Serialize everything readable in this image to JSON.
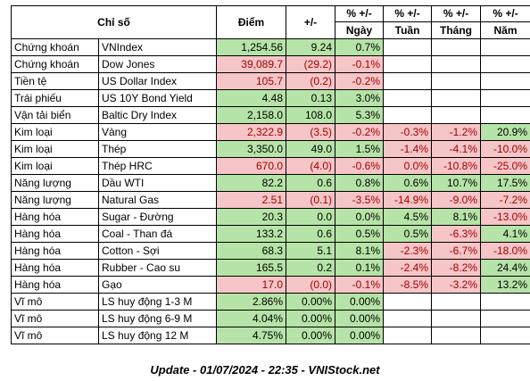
{
  "headers": {
    "category": "Chỉ số",
    "points": "Điểm",
    "change": "+/-",
    "pct_day_top": "% +/-",
    "pct_day_bottom": "Ngày",
    "pct_week_top": "% +/-",
    "pct_week_bottom": "Tuần",
    "pct_month_top": "% +/-",
    "pct_month_bottom": "Tháng",
    "pct_year_top": "% +/-",
    "pct_year_bottom": "Năm"
  },
  "rows": [
    {
      "category": "Chứng khoán",
      "name": "VNIndex",
      "points": "1,254.56",
      "change": "9.24",
      "day": "0.7%",
      "week": "",
      "month": "",
      "year": ""
    },
    {
      "category": "Chứng khoán",
      "name": "Dow Jones",
      "points": "39,089.7",
      "change": "(29.2)",
      "day": "-0.1%",
      "week": "",
      "month": "",
      "year": ""
    },
    {
      "category": "Tiền tệ",
      "name": "US Dollar Index",
      "points": "105.7",
      "change": "(0.2)",
      "day": "-0.2%",
      "week": "",
      "month": "",
      "year": ""
    },
    {
      "category": "Trái phiếu",
      "name": "US 10Y Bond Yield",
      "points": "4.48",
      "change": "0.13",
      "day": "3.0%",
      "week": "",
      "month": "",
      "year": ""
    },
    {
      "category": "Vận tải biển",
      "name": "Baltic Dry Index",
      "points": "2,158.0",
      "change": "108.0",
      "day": "5.3%",
      "week": "",
      "month": "",
      "year": ""
    },
    {
      "category": "Kim loại",
      "name": "Vàng",
      "points": "2,322.9",
      "change": "(3.5)",
      "day": "-0.2%",
      "week": "-0.3%",
      "month": "-1.2%",
      "year": "20.9%"
    },
    {
      "category": "Kim loại",
      "name": "Thép",
      "points": "3,350.0",
      "change": "49.0",
      "day": "1.5%",
      "week": "-1.4%",
      "month": "-4.1%",
      "year": "-10.0%"
    },
    {
      "category": "Kim loại",
      "name": "Thép HRC",
      "points": "670.0",
      "change": "(4.0)",
      "day": "-0.6%",
      "week": "0.0%",
      "month": "-10.8%",
      "year": "-25.0%"
    },
    {
      "category": "Năng lượng",
      "name": "Dầu WTI",
      "points": "82.2",
      "change": "0.6",
      "day": "0.8%",
      "week": "0.6%",
      "month": "10.7%",
      "year": "17.5%"
    },
    {
      "category": "Năng lượng",
      "name": "Natural Gas",
      "points": "2.51",
      "change": "(0.1)",
      "day": "-3.5%",
      "week": "-14.9%",
      "month": "-9.0%",
      "year": "-7.2%"
    },
    {
      "category": "Hàng hóa",
      "name": "Sugar - Đường",
      "points": "20.3",
      "change": "0.0",
      "day": "0.0%",
      "week": "4.5%",
      "month": "8.1%",
      "year": "-13.0%"
    },
    {
      "category": "Hàng hóa",
      "name": "Coal - Than đá",
      "points": "133.2",
      "change": "0.6",
      "day": "0.5%",
      "week": "0.5%",
      "month": "-6.3%",
      "year": "4.1%"
    },
    {
      "category": "Hàng hóa",
      "name": "Cotton - Sợi",
      "points": "68.3",
      "change": "5.1",
      "day": "8.1%",
      "week": "-2.3%",
      "month": "-6.7%",
      "year": "-18.0%"
    },
    {
      "category": "Hàng hóa",
      "name": "Rubber - Cao su",
      "points": "165.5",
      "change": "0.2",
      "day": "0.1%",
      "week": "-2.4%",
      "month": "-8.2%",
      "year": "24.4%"
    },
    {
      "category": "Hàng hóa",
      "name": "Gạo",
      "points": "17.0",
      "change": "(0.0)",
      "day": "-0.1%",
      "week": "-8.5%",
      "month": "-3.2%",
      "year": "13.2%"
    },
    {
      "category": "Vĩ mô",
      "name": "LS huy động 1-3 M",
      "points": "2.86%",
      "change": "0.00%",
      "day": "0.00%",
      "week": "",
      "month": "",
      "year": ""
    },
    {
      "category": "Vĩ mô",
      "name": "LS huy động 6-9 M",
      "points": "4.04%",
      "change": "0.00%",
      "day": "0.00%",
      "week": "",
      "month": "",
      "year": ""
    },
    {
      "category": "Vĩ mô",
      "name": "LS huy động 12 M",
      "points": "4.75%",
      "change": "0.00%",
      "day": "0.00%",
      "week": "",
      "month": "",
      "year": ""
    }
  ],
  "footer": "Update - 01/07/2024 - 22:35 - VNIStock.net",
  "colors": {
    "positive_fill": "#b6e3a7",
    "negative_fill": "#f6c5c7",
    "negative_text": "#a10000"
  }
}
